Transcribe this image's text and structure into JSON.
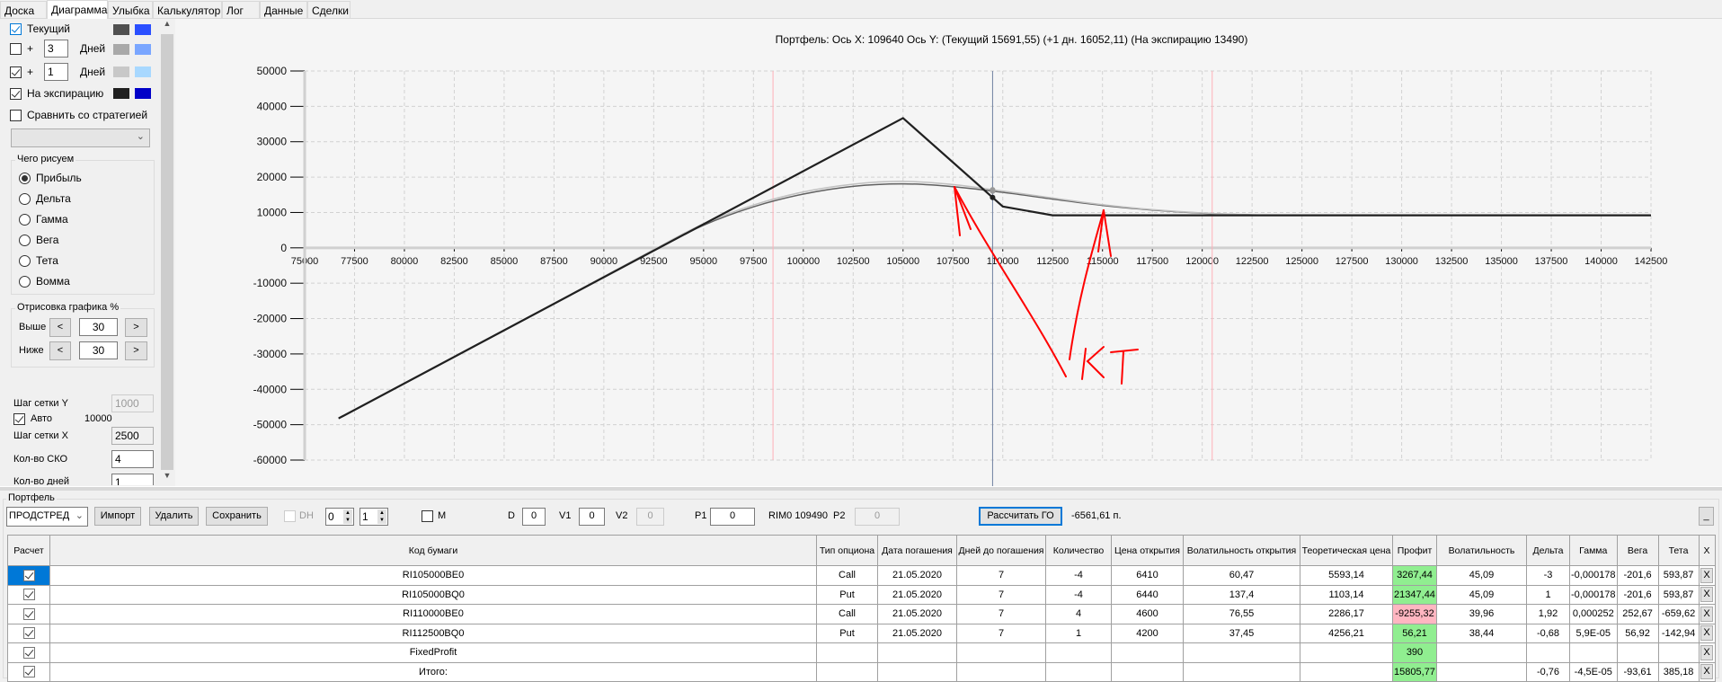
{
  "tabs": [
    {
      "label": "Доска"
    },
    {
      "label": "Диаграмма",
      "active": true
    },
    {
      "label": "Улыбка"
    },
    {
      "label": "Калькулятор"
    },
    {
      "label": "Лог"
    },
    {
      "label": "Данные"
    },
    {
      "label": "Сделки"
    }
  ],
  "left_panel": {
    "curves": [
      {
        "label": "Текущий",
        "checked": true,
        "colors": [
          "#505050",
          "#2a4fff"
        ]
      },
      {
        "label": "+",
        "days": "3",
        "days_label": "Дней",
        "checked": false,
        "colors": [
          "#a9a9a9",
          "#7aa6ff"
        ]
      },
      {
        "label": "+",
        "days": "1",
        "days_label": "Дней",
        "checked": true,
        "colors": [
          "#c8c8c8",
          "#a8d8ff"
        ]
      },
      {
        "label": "На экспирацию",
        "checked": true,
        "colors": [
          "#202020",
          "#0000c8"
        ]
      }
    ],
    "compare_label": "Сравнить со стратегией",
    "strategy_select": "",
    "draw_group": {
      "title": "Чего рисуем",
      "options": [
        "Прибыль",
        "Дельта",
        "Гамма",
        "Вега",
        "Тета",
        "Вомма"
      ],
      "selected": "Прибыль"
    },
    "render_group": {
      "title": "Отрисовка графика %",
      "above_label": "Выше",
      "above_value": "30",
      "below_label": "Ниже",
      "below_value": "30",
      "dec": "<",
      "inc": ">"
    },
    "grid_y_label": "Шаг сетки Y",
    "grid_y_value": "1000",
    "auto_label": "Авто",
    "auto_value": "10000",
    "grid_x_label": "Шаг сетки X",
    "grid_x_value": "2500",
    "sko_label": "Кол-во СКО",
    "sko_value": "4",
    "days_label": "Кол-во дней",
    "days_value": "1"
  },
  "chart_data": {
    "type": "line",
    "title": "Портфель: Ось X: 109640 Ось Y:  (Текущий 15691,55)  (+1 дн. 16052,11)  (На экспирацию 13490)",
    "xlim": [
      75000,
      142500
    ],
    "ylim": [
      -60000,
      50000
    ],
    "x_ticks": [
      75000,
      77500,
      80000,
      82500,
      85000,
      87500,
      90000,
      92500,
      95000,
      97500,
      100000,
      102500,
      105000,
      107500,
      110000,
      112500,
      115000,
      117500,
      120000,
      122500,
      125000,
      127500,
      130000,
      132500,
      135000,
      137500,
      140000,
      142500
    ],
    "y_ticks": [
      50000,
      40000,
      30000,
      20000,
      10000,
      0,
      -10000,
      -20000,
      -30000,
      -40000,
      -50000,
      -60000
    ],
    "grid": true,
    "series": [
      {
        "key": "current",
        "color": "#606060",
        "points": [
          [
            76700,
            -48300
          ],
          [
            85000,
            -23400
          ],
          [
            90000,
            -8300
          ],
          [
            92500,
            -700
          ],
          [
            95000,
            6400
          ],
          [
            97500,
            11600
          ],
          [
            100000,
            15200
          ],
          [
            102500,
            17400
          ],
          [
            105000,
            18100
          ],
          [
            107500,
            17300
          ],
          [
            110000,
            15690
          ],
          [
            112500,
            13800
          ],
          [
            115000,
            12000
          ],
          [
            117500,
            10700
          ],
          [
            120000,
            9800
          ],
          [
            122500,
            9300
          ],
          [
            125000,
            9190
          ],
          [
            142500,
            9190
          ]
        ]
      },
      {
        "key": "plus_1_day",
        "color": "#c0c0c0",
        "points": [
          [
            76700,
            -48300
          ],
          [
            85000,
            -23300
          ],
          [
            90000,
            -8100
          ],
          [
            92500,
            -500
          ],
          [
            95000,
            6800
          ],
          [
            97500,
            12100
          ],
          [
            100000,
            15800
          ],
          [
            102500,
            18000
          ],
          [
            105000,
            18800
          ],
          [
            107500,
            17900
          ],
          [
            110000,
            16050
          ],
          [
            112500,
            14100
          ],
          [
            115000,
            12200
          ],
          [
            117500,
            10800
          ],
          [
            120000,
            9850
          ],
          [
            122500,
            9350
          ],
          [
            125000,
            9190
          ],
          [
            142500,
            9190
          ]
        ]
      },
      {
        "key": "expiration",
        "color": "#202020",
        "points": [
          [
            76700,
            -48210
          ],
          [
            105000,
            36690
          ],
          [
            110000,
            11690
          ],
          [
            112500,
            9190
          ],
          [
            142500,
            9190
          ]
        ]
      }
    ],
    "cursor_x": 109490,
    "sigma_lines": [
      98480,
      120500
    ],
    "cursor_color": "#7080a0",
    "sigma_color": "#ffb0b8"
  },
  "annotation": {
    "text": "КТ",
    "color": "#ff0000"
  },
  "portfolio": {
    "title": "Портфель",
    "select": "ПРОДСТРЕД",
    "import": "Импорт",
    "delete": "Удалить",
    "save": "Сохранить",
    "dh_label": "DH",
    "spin1": "0",
    "spin2": "1",
    "m_label": "M",
    "d_label": "D",
    "d_value": "0",
    "v1_label": "V1",
    "v1_value": "0",
    "v2_label": "V2",
    "v2_value": "0",
    "p1_label": "P1",
    "p1_value": "0",
    "rim_label": "RIM0 109490",
    "p2_label": "P2",
    "p2_value": "0",
    "calc_go": "Рассчитать ГО",
    "go_value": "-6561,61 п.",
    "minimize": "_"
  },
  "table": {
    "columns": [
      "Расчет",
      "Код бумаги",
      "Тип опциона",
      "Дата погашения",
      "Дней до погашения",
      "Количество",
      "Цена открытия",
      "Волатильность открытия",
      "Теоретическая цена",
      "Профит",
      "Волатильность",
      "Дельта",
      "Гамма",
      "Вега",
      "Тета",
      "X"
    ],
    "rows": [
      {
        "calc": true,
        "code": "RI105000BE0",
        "type": "Call",
        "date": "21.05.2020",
        "days": "7",
        "qty": "-4",
        "open": "6410",
        "open_vol": "60,47",
        "theo": "5593,14",
        "profit": "3267,44",
        "profit_state": "pos",
        "vol": "45,09",
        "delta": "-3",
        "gamma": "-0,000178",
        "vega": "-201,6",
        "theta": "593,87",
        "x": "X"
      },
      {
        "calc": true,
        "code": "RI105000BQ0",
        "type": "Put",
        "date": "21.05.2020",
        "days": "7",
        "qty": "-4",
        "open": "6440",
        "open_vol": "137,4",
        "theo": "1103,14",
        "profit": "21347,44",
        "profit_state": "pos",
        "vol": "45,09",
        "delta": "1",
        "gamma": "-0,000178",
        "vega": "-201,6",
        "theta": "593,87",
        "x": "X"
      },
      {
        "calc": true,
        "code": "RI110000BE0",
        "type": "Call",
        "date": "21.05.2020",
        "days": "7",
        "qty": "4",
        "open": "4600",
        "open_vol": "76,55",
        "theo": "2286,17",
        "profit": "-9255,32",
        "profit_state": "neg",
        "vol": "39,96",
        "delta": "1,92",
        "gamma": "0,000252",
        "vega": "252,67",
        "theta": "-659,62",
        "x": "X"
      },
      {
        "calc": true,
        "code": "RI112500BQ0",
        "type": "Put",
        "date": "21.05.2020",
        "days": "7",
        "qty": "1",
        "open": "4200",
        "open_vol": "37,45",
        "theo": "4256,21",
        "profit": "56,21",
        "profit_state": "pos",
        "vol": "38,44",
        "delta": "-0,68",
        "gamma": "5,9E-05",
        "vega": "56,92",
        "theta": "-142,94",
        "x": "X"
      },
      {
        "calc": true,
        "code": "FixedProfit",
        "type": "",
        "date": "",
        "days": "",
        "qty": "",
        "open": "",
        "open_vol": "",
        "theo": "",
        "profit": "390",
        "profit_state": "pos",
        "vol": "",
        "delta": "",
        "gamma": "",
        "vega": "",
        "theta": "",
        "x": "X"
      },
      {
        "calc": true,
        "code": "Итого:",
        "type": "",
        "date": "",
        "days": "",
        "qty": "",
        "open": "",
        "open_vol": "",
        "theo": "",
        "profit": "15805,77",
        "profit_state": "pos",
        "vol": "",
        "delta": "-0,76",
        "gamma": "-4,5E-05",
        "vega": "-93,61",
        "theta": "385,18",
        "x": "X"
      }
    ]
  }
}
